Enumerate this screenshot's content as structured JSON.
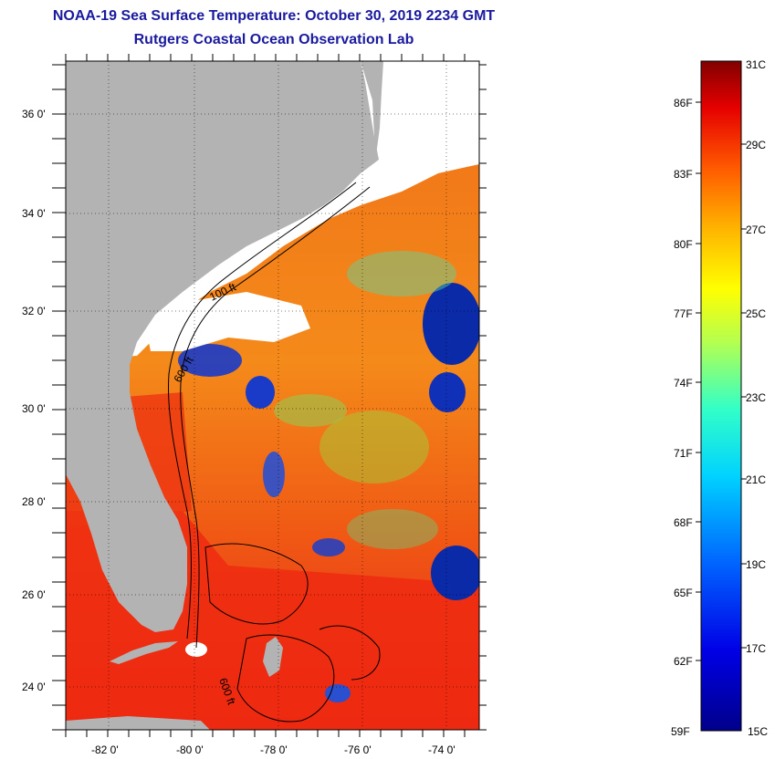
{
  "header": {
    "title": "NOAA-19 Sea Surface Temperature:  October 30, 2019 2234 GMT",
    "subtitle": "Rutgers Coastal Ocean Observation Lab"
  },
  "map": {
    "lat_labels": [
      "36 0'",
      "34 0'",
      "32 0'",
      "30 0'",
      "28 0'",
      "26 0'",
      "24 0'"
    ],
    "lon_labels": [
      "-82 0'",
      "-80 0'",
      "-78 0'",
      "-76 0'",
      "-74 0'"
    ],
    "contour_labels": [
      "100 ft",
      "600 ft",
      "600 ft"
    ]
  },
  "colorbar": {
    "fahrenheit": [
      "86F",
      "83F",
      "80F",
      "77F",
      "74F",
      "71F",
      "68F",
      "65F",
      "62F",
      "59F"
    ],
    "celsius": [
      "31C",
      "29C",
      "27C",
      "25C",
      "23C",
      "21C",
      "19C",
      "17C",
      "15C"
    ]
  },
  "colors": {
    "land": "#b3b3b3",
    "cloud": "#ffffff",
    "warm": "#ee2a10",
    "title": "#1a1a9e"
  }
}
